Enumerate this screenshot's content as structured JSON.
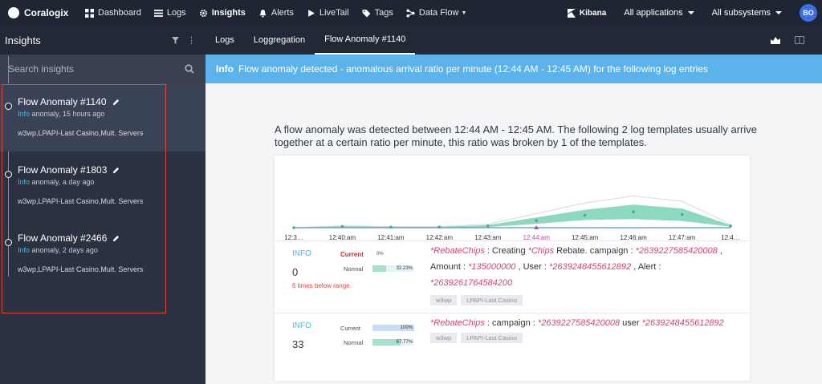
{
  "topbar": {
    "brand": "Coralogix",
    "nav": [
      {
        "label": "Dashboard",
        "icon": "grid-icon"
      },
      {
        "label": "Logs",
        "icon": "list-icon"
      },
      {
        "label": "Insights",
        "icon": "gear-icon"
      },
      {
        "label": "Alerts",
        "icon": "bell-icon"
      },
      {
        "label": "LiveTail",
        "icon": "play-icon"
      },
      {
        "label": "Tags",
        "icon": "tag-icon"
      },
      {
        "label": "Data Flow",
        "icon": "dataflow-icon"
      }
    ],
    "kibana": "Kibana",
    "applications": "All applications",
    "subsystems": "All subsystems",
    "avatar": "BO"
  },
  "sidebar": {
    "title": "Insights",
    "search_placeholder": "Search insights",
    "items": [
      {
        "title": "Flow Anomaly #1140",
        "level": "Info",
        "meta": " anomaly, 15 hours ago",
        "sources": "w3wp,LPAPI-Last Casino,Mult. Servers"
      },
      {
        "title": "Flow Anomaly #1803",
        "level": "Info",
        "meta": " anomaly, a day ago",
        "sources": "w3wp,LPAPI-Last Casino,Mult. Servers"
      },
      {
        "title": "Flow Anomaly #2466",
        "level": "Info",
        "meta": " anomaly, 2 days ago",
        "sources": "w3wp,LPAPI-Last Casino,Mult. Servers"
      }
    ]
  },
  "tabs": [
    "Logs",
    "Loggregation",
    "Flow Anomaly #1140"
  ],
  "banner": {
    "level": "Info",
    "text": "Flow anomaly detected - anomalous arrival ratio per minute (12:44 AM - 12:45 AM) for the following log entries"
  },
  "description": "A flow anomaly was detected between 12:44 AM - 12:45 AM. The following 2 log templates usually arrive together at a certain ratio per minute, this ratio was broken by 1 of the templates.",
  "chart_data": {
    "type": "area",
    "x": [
      "12:3…",
      "12:40:am",
      "12:41:am",
      "12:42:am",
      "12:43:am",
      "12:44:am",
      "12:45:am",
      "12:46:am",
      "12:47:am",
      "12:4…"
    ],
    "highlight": "12:44:am",
    "colors": {
      "band": "#6fcfb0",
      "line": "#5b8fd6",
      "highlight": "#c03fc0"
    }
  },
  "templates": [
    {
      "level": "INFO",
      "count": "0",
      "note": "6 times below range",
      "current_label": "Current",
      "current_pct": "0%",
      "current_value": 0,
      "normal_label": "Normal",
      "normal_pct": "32.23%",
      "normal_value": 0.3223,
      "tokens": [
        {
          "t": "*RebateChips",
          "v": true
        },
        {
          "t": " : Creating ",
          "v": false
        },
        {
          "t": "*Chips",
          "v": true
        },
        {
          "t": " Rebate. campaign : ",
          "v": false
        },
        {
          "t": "*2639227585420008",
          "v": true
        },
        {
          "t": " , Amount : ",
          "v": false
        },
        {
          "t": "*135000000",
          "v": true
        },
        {
          "t": " , User : ",
          "v": false
        },
        {
          "t": "*2639248455612892",
          "v": true
        },
        {
          "t": " , Alert : ",
          "v": false
        },
        {
          "t": "*2639261764584200",
          "v": true
        }
      ],
      "tags": [
        "w3wp",
        "LPAPI-Last Casino"
      ]
    },
    {
      "level": "INFO",
      "count": "33",
      "current_label": "Current",
      "current_pct": "100%",
      "current_value": 1.0,
      "normal_label": "Normal",
      "normal_pct": "67.77%",
      "normal_value": 0.6777,
      "tokens": [
        {
          "t": "*RebateChips",
          "v": true
        },
        {
          "t": " : campaign : ",
          "v": false
        },
        {
          "t": "*2639227585420008",
          "v": true
        },
        {
          "t": " user ",
          "v": false
        },
        {
          "t": "*2639248455612892",
          "v": true
        }
      ],
      "tags": [
        "w3wp",
        "LPAPI-Last Casino"
      ]
    }
  ]
}
